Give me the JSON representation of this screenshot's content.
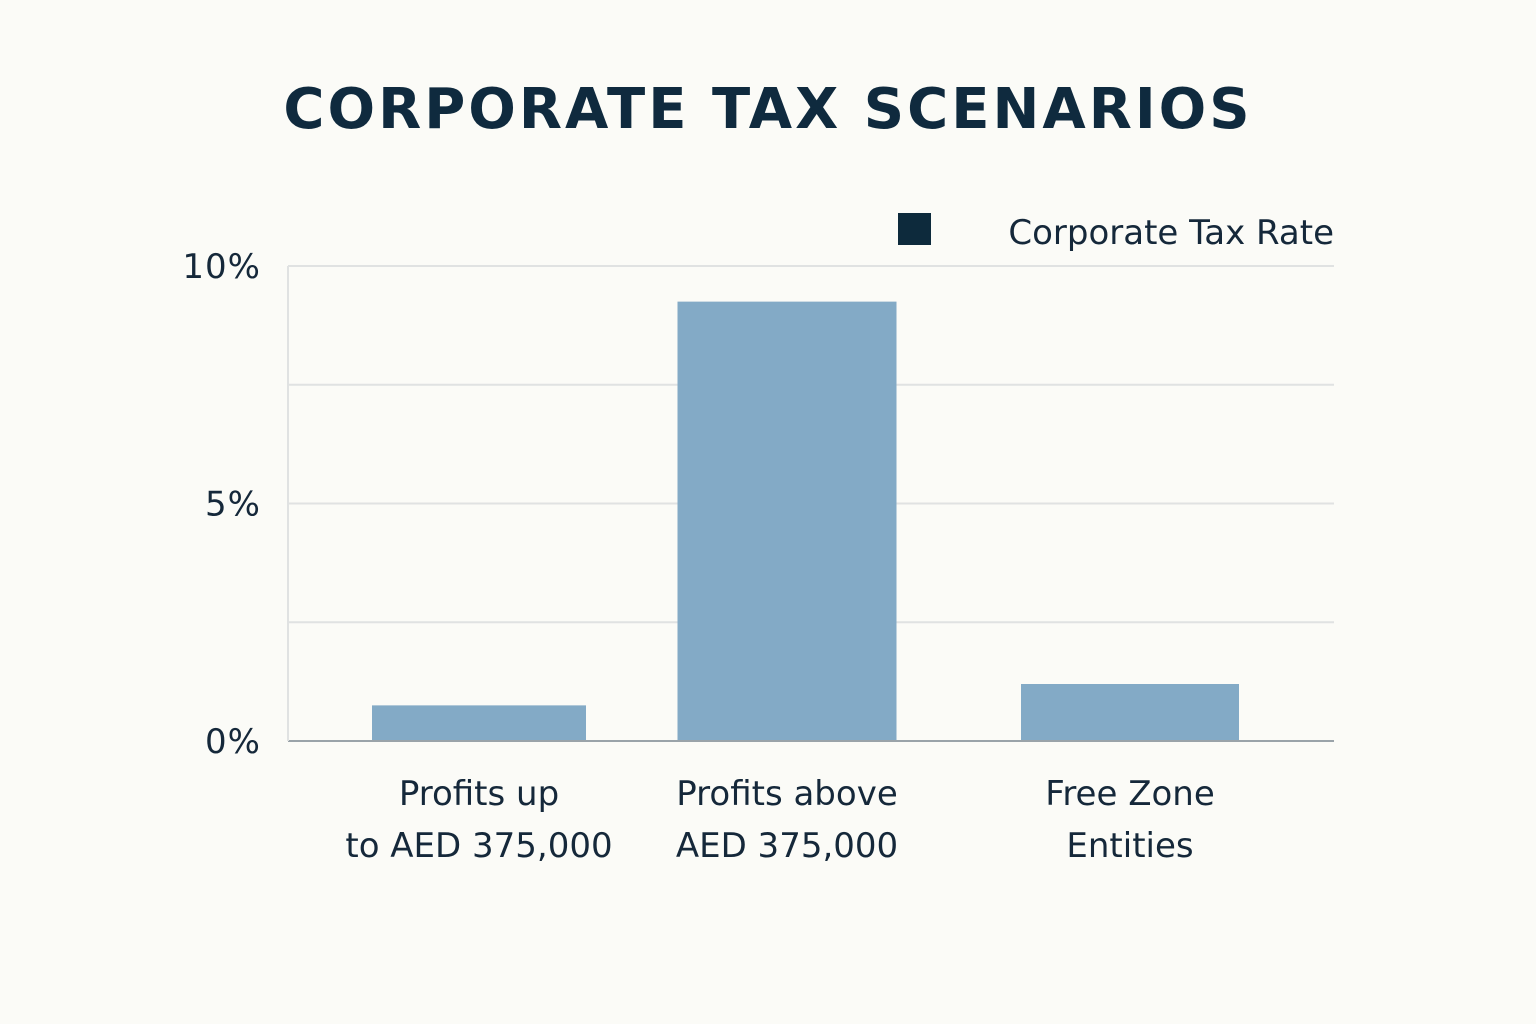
{
  "chart_data": {
    "type": "bar",
    "title": "CORPORATE TAX SCENARIOS",
    "categories": [
      [
        "Profits up",
        "to AED 375,000"
      ],
      [
        "Profits above",
        "AED 375,000"
      ],
      [
        "Free Zone",
        "Entities"
      ]
    ],
    "series": [
      {
        "name": "Corporate Tax Rate",
        "values": [
          0.75,
          9.25,
          1.2
        ],
        "color": "#83aac6"
      }
    ],
    "ylim": [
      0,
      10
    ],
    "yticks": [
      {
        "value": 0,
        "label": "0%"
      },
      {
        "value": 5,
        "label": "5%"
      },
      {
        "value": 10,
        "label": "10%"
      }
    ],
    "gridlines": [
      0,
      2.5,
      5,
      7.5,
      10
    ],
    "grid": true,
    "legend": "top-right",
    "xlabel": "",
    "ylabel": ""
  },
  "colors": {
    "title": "#0f2a3e",
    "text": "#15283a",
    "legend_marker": "#0d2a3c",
    "grid": "#e0e2e2",
    "axis": "#9aa3a9"
  }
}
